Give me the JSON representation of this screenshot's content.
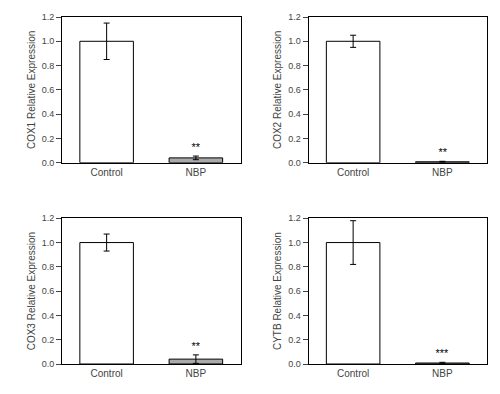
{
  "chart_data": [
    {
      "type": "bar",
      "ylabel": "COX1 Relative Expression",
      "categories": [
        "Control",
        "NBP"
      ],
      "values": [
        1.0,
        0.04
      ],
      "errors": [
        0.15,
        0.015
      ],
      "colors": [
        "white",
        "#aaaaaa"
      ],
      "annotations": [
        {
          "text": "**",
          "x": "NBP",
          "y": 0.06
        }
      ],
      "ylim": [
        0,
        1.2
      ],
      "yticks": [
        {
          "value": 0,
          "label": "0.0"
        },
        0.2,
        0.4,
        0.6,
        0.8,
        {
          "value": 1.0,
          "label": "1.0"
        },
        1.2
      ],
      "grid": false
    },
    {
      "type": "bar",
      "ylabel": "COX2 Relative Expression",
      "categories": [
        "Control",
        "NBP"
      ],
      "values": [
        1.0,
        0.008
      ],
      "errors": [
        0.05,
        0.004
      ],
      "colors": [
        "white",
        "#aaaaaa"
      ],
      "annotations": [
        {
          "text": "**",
          "x": "NBP",
          "y": 0.025
        }
      ],
      "ylim": [
        0,
        1.2
      ],
      "yticks": [
        {
          "value": 0,
          "label": "0.0"
        },
        0.2,
        0.4,
        0.6,
        0.8,
        {
          "value": 1.0,
          "label": "1.0"
        },
        1.2
      ],
      "grid": false
    },
    {
      "type": "bar",
      "ylabel": "COX3 Relative Expression",
      "categories": [
        "Control",
        "NBP"
      ],
      "values": [
        1.0,
        0.04
      ],
      "errors": [
        0.07,
        0.035
      ],
      "colors": [
        "white",
        "#aaaaaa"
      ],
      "annotations": [
        {
          "text": "**",
          "x": "NBP",
          "y": 0.085
        }
      ],
      "ylim": [
        0,
        1.2
      ],
      "yticks": [
        {
          "value": 0,
          "label": "0.0"
        },
        0.2,
        0.4,
        0.6,
        0.8,
        {
          "value": 1.0,
          "label": "1.0"
        },
        1.2
      ],
      "grid": false
    },
    {
      "type": "bar",
      "ylabel": "CYTB Relative Expression",
      "categories": [
        "Control",
        "NBP"
      ],
      "values": [
        1.0,
        0.008
      ],
      "errors": [
        0.18,
        0.006
      ],
      "colors": [
        "white",
        "#aaaaaa"
      ],
      "annotations": [
        {
          "text": "***",
          "x": "NBP",
          "y": 0.022
        }
      ],
      "ylim": [
        0,
        1.2
      ],
      "yticks": [
        {
          "value": 0,
          "label": "0.0"
        },
        0.2,
        0.4,
        0.6,
        0.8,
        {
          "value": 1.0,
          "label": "1.0"
        },
        1.2
      ],
      "grid": false
    }
  ]
}
